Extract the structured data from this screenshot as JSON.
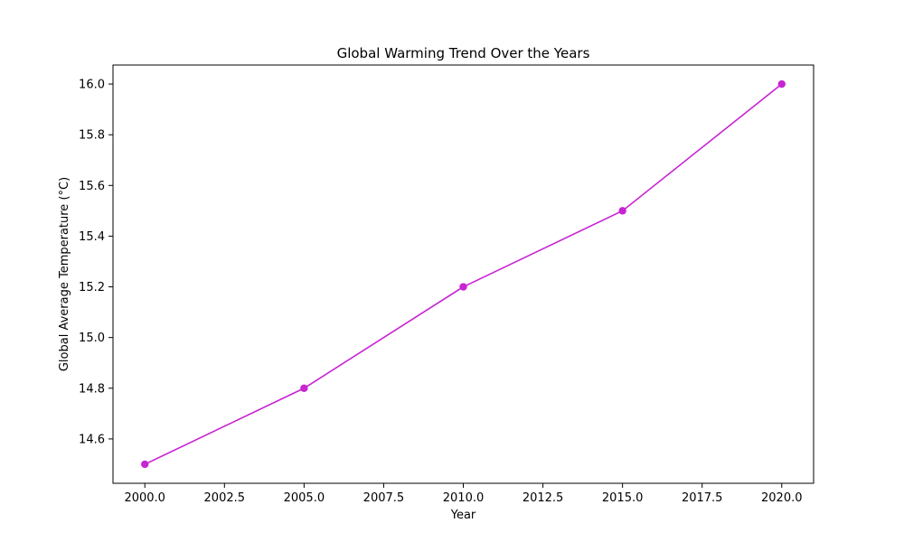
{
  "chart_data": {
    "type": "line",
    "title": "Global Warming Trend Over the Years",
    "xlabel": "Year",
    "ylabel": "Global Average Temperature (°C)",
    "xlim": [
      1999,
      2021
    ],
    "ylim": [
      14.425,
      16.075
    ],
    "x_ticks": [
      2000.0,
      2002.5,
      2005.0,
      2007.5,
      2010.0,
      2012.5,
      2015.0,
      2017.5,
      2020.0
    ],
    "x_tick_labels": [
      "2000.0",
      "2002.5",
      "2005.0",
      "2007.5",
      "2010.0",
      "2012.5",
      "2015.0",
      "2017.5",
      "2020.0"
    ],
    "y_ticks": [
      14.6,
      14.8,
      15.0,
      15.2,
      15.4,
      15.6,
      15.8,
      16.0
    ],
    "y_tick_labels": [
      "14.6",
      "14.8",
      "15.0",
      "15.2",
      "15.4",
      "15.6",
      "15.8",
      "16.0"
    ],
    "grid": false,
    "series": [
      {
        "color": "#c724d2",
        "marker": "circle",
        "x": [
          2000,
          2005,
          2010,
          2015,
          2020
        ],
        "y": [
          14.5,
          14.8,
          15.2,
          15.5,
          16.0
        ]
      }
    ]
  }
}
